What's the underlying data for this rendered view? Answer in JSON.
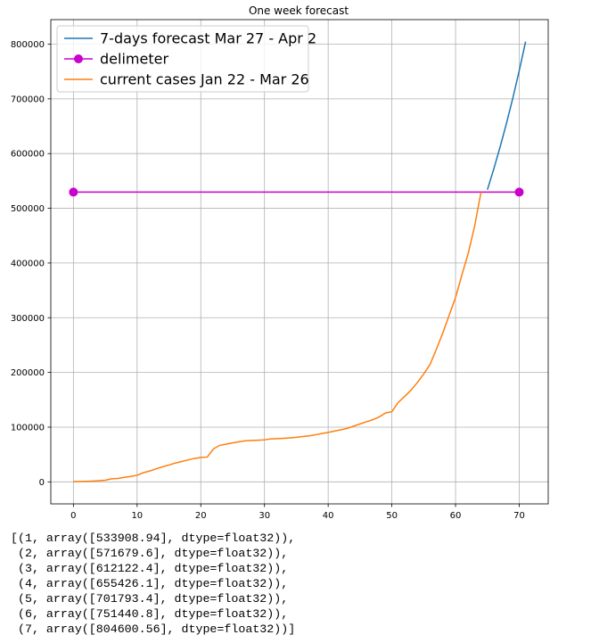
{
  "chart_data": {
    "type": "line",
    "title": "One week forecast",
    "xlabel": "",
    "ylabel": "",
    "xlim": [
      -3.55,
      74.55
    ],
    "ylim": [
      -40230,
      844830
    ],
    "xticks": [
      0,
      10,
      20,
      30,
      40,
      50,
      60,
      70
    ],
    "yticks": [
      0,
      100000,
      200000,
      300000,
      400000,
      500000,
      600000,
      700000,
      800000
    ],
    "grid": true,
    "legend_position": "top-left",
    "series": [
      {
        "name": "7-days forecast Mar 27 - Apr 2",
        "color": "#1f77b4",
        "marker": "none",
        "x": [
          65,
          66,
          67,
          68,
          69,
          70,
          71
        ],
        "y": [
          533908.94,
          571679.6,
          612122.4,
          655426.1,
          701793.4,
          751440.8,
          804600.56
        ]
      },
      {
        "name": "delimeter",
        "color": "#cc00cc",
        "marker": "circle",
        "x": [
          0,
          70
        ],
        "y": [
          529591,
          529591
        ]
      },
      {
        "name": "current cases Jan 22 - Mar 26",
        "color": "#ff7f0e",
        "marker": "none",
        "x": [
          0,
          1,
          2,
          3,
          4,
          5,
          6,
          7,
          8,
          9,
          10,
          11,
          12,
          13,
          14,
          15,
          16,
          17,
          18,
          19,
          20,
          21,
          22,
          23,
          24,
          25,
          26,
          27,
          28,
          29,
          30,
          31,
          32,
          33,
          34,
          35,
          36,
          37,
          38,
          39,
          40,
          41,
          42,
          43,
          44,
          45,
          46,
          47,
          48,
          49,
          50,
          51,
          52,
          53,
          54,
          55,
          56,
          57,
          58,
          59,
          60,
          61,
          62,
          63,
          64
        ],
        "y": [
          555,
          653,
          941,
          1434,
          2118,
          2927,
          5578,
          6166,
          8234,
          9927,
          12038,
          16787,
          19881,
          23892,
          27635,
          30794,
          34391,
          37120,
          40150,
          42762,
          44802,
          45221,
          60368,
          66885,
          69030,
          71224,
          73258,
          75136,
          75639,
          76197,
          76819,
          78572,
          78958,
          79561,
          80406,
          81388,
          82746,
          84112,
          86011,
          88369,
          90306,
          92840,
          95120,
          97886,
          101801,
          105847,
          109821,
          113590,
          118620,
          125875,
          128352,
          145205,
          156101,
          167454,
          181574,
          197102,
          214821,
          242570,
          272208,
          304507,
          336953,
          378235,
          418045,
          467653,
          529591
        ]
      }
    ]
  },
  "output_lines": [
    "[(1, array([533908.94], dtype=float32)),",
    " (2, array([571679.6], dtype=float32)),",
    " (3, array([612122.4], dtype=float32)),",
    " (4, array([655426.1], dtype=float32)),",
    " (5, array([701793.4], dtype=float32)),",
    " (6, array([751440.8], dtype=float32)),",
    " (7, array([804600.56], dtype=float32))]"
  ]
}
